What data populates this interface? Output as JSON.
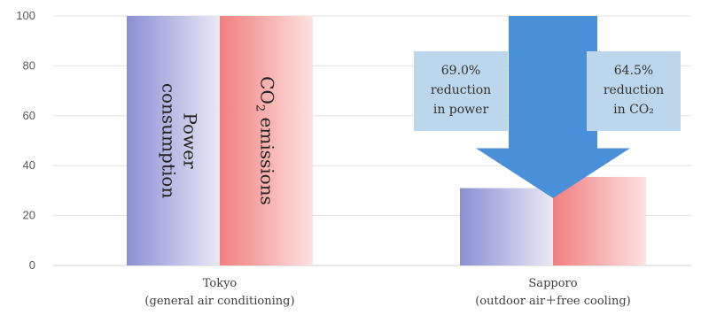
{
  "chart_data": {
    "type": "bar",
    "categories": [
      [
        "Tokyo",
        "(general air conditioning)"
      ],
      [
        "Sapporo",
        "(outdoor air＋free cooling)"
      ]
    ],
    "series": [
      {
        "name": "Power consumption",
        "values": [
          100,
          31.0
        ],
        "color_start": "#8a8fd4",
        "color_end": "#e9e9f4"
      },
      {
        "name": "CO₂ emissions",
        "values": [
          100,
          35.5
        ],
        "color_start": "#f27f7f",
        "color_end": "#fde1e1"
      }
    ],
    "series_labels": {
      "power": [
        "Power",
        "consumption"
      ],
      "co2_main": "CO",
      "co2_sub": "2",
      "co2_rest": " emissions"
    },
    "ylim": [
      0,
      100
    ],
    "yticks": [
      0,
      20,
      40,
      60,
      80,
      100
    ],
    "grid": true,
    "arrow_color": "#4a90d9",
    "callout_color": "#bcd7ec",
    "callouts": [
      {
        "lines": [
          "69.0%",
          "reduction",
          "in power"
        ]
      },
      {
        "lines": [
          "64.5%",
          "reduction",
          "in CO₂"
        ]
      }
    ]
  }
}
